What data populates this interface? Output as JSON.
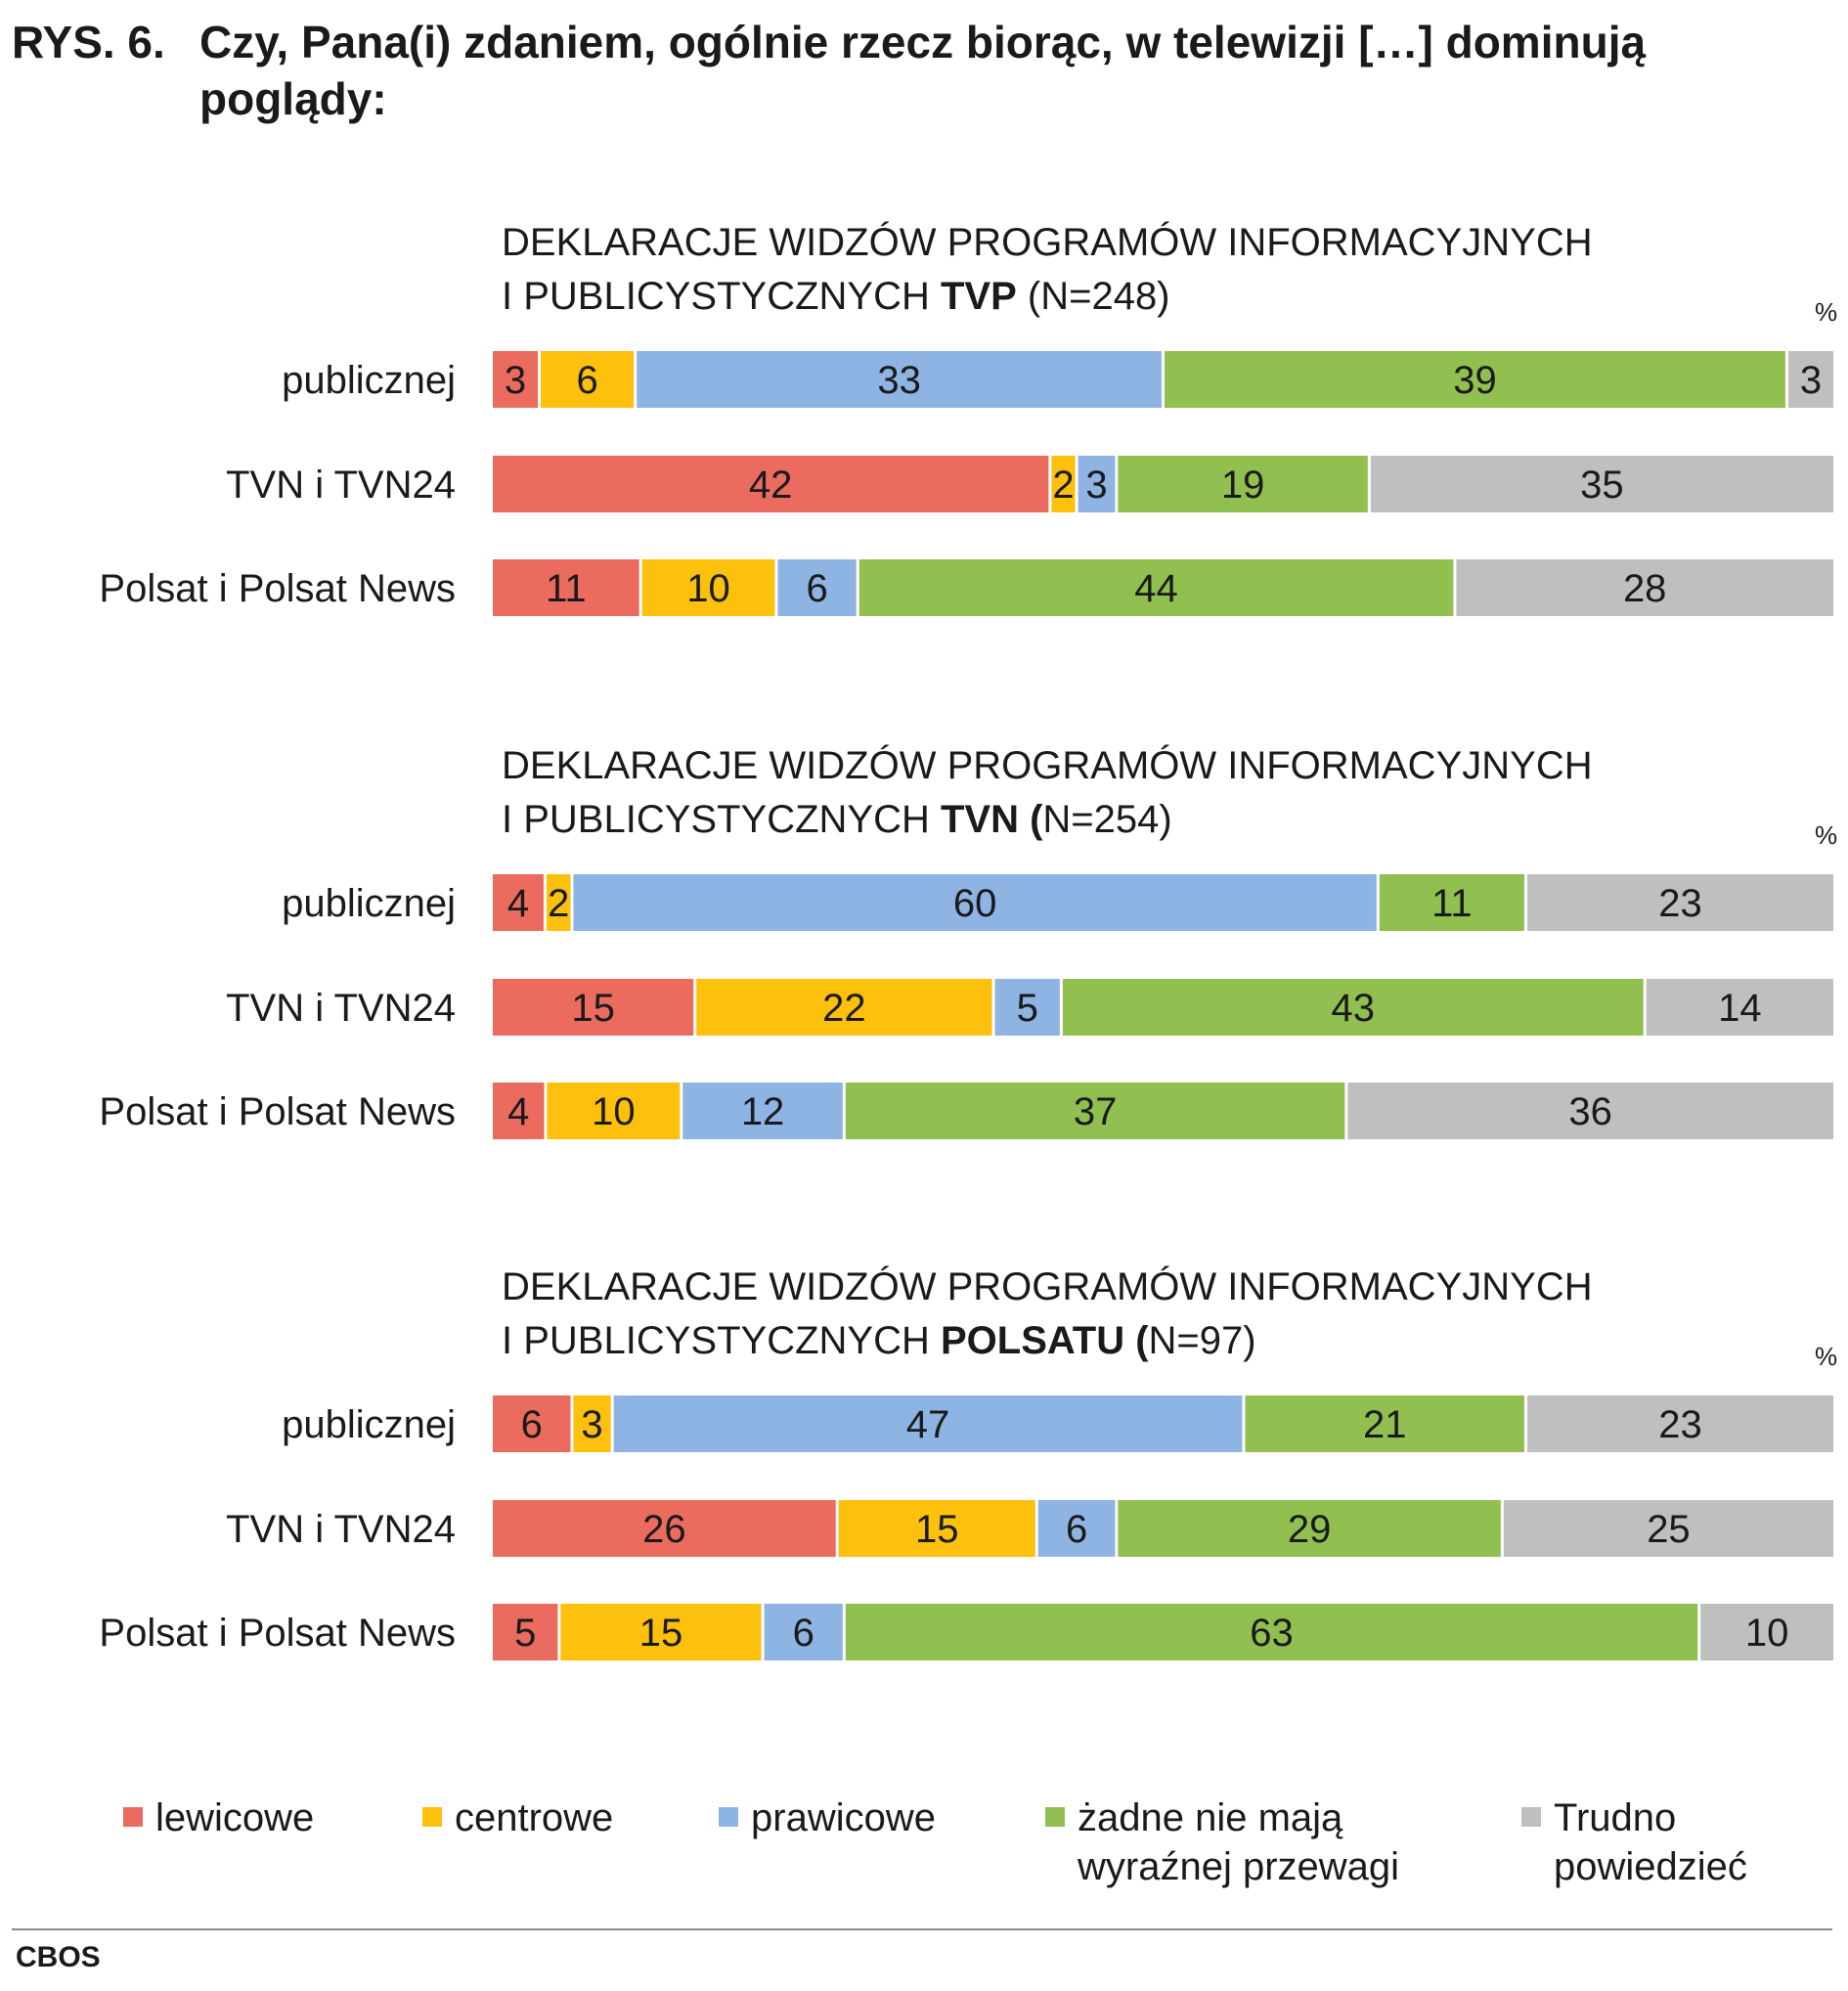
{
  "figure": {
    "label": "RYS. 6.",
    "title": "Czy, Pana(i) zdaniem, ogólnie rzecz biorąc, w telewizji […] dominują poglądy:"
  },
  "source": "CBOS",
  "chart_data": [
    {
      "type": "bar",
      "orientation": "horizontal",
      "stacked": true,
      "title_line1": "DEKLARACJE WIDZÓW PROGRAMÓW INFORMACYJNYCH",
      "title_line2_prefix": "I PUBLICYSTYCZNYCH ",
      "title_line2_bold": "TVP",
      "title_line2_suffix": " (N=248)",
      "unit": "%",
      "categories": [
        "publicznej",
        "TVN i TVN24",
        "Polsat i Polsat News"
      ],
      "series": [
        {
          "name": "lewicowe",
          "color": "#eb6b5e",
          "values": [
            3,
            42,
            11
          ]
        },
        {
          "name": "centrowe",
          "color": "#fdc00d",
          "values": [
            6,
            2,
            10
          ]
        },
        {
          "name": "prawicowe",
          "color": "#8eb4e3",
          "values": [
            33,
            3,
            6
          ]
        },
        {
          "name": "żadne nie mają wyraźnej przewagi",
          "color": "#92c050",
          "values": [
            39,
            19,
            44
          ]
        },
        {
          "name": "Trudno powiedzieć",
          "color": "#bfbfbf",
          "values": [
            3,
            35,
            28
          ]
        }
      ]
    },
    {
      "type": "bar",
      "orientation": "horizontal",
      "stacked": true,
      "title_line1": "DEKLARACJE WIDZÓW PROGRAMÓW INFORMACYJNYCH",
      "title_line2_prefix": "I PUBLICYSTYCZNYCH ",
      "title_line2_bold": "TVN (",
      "title_line2_suffix": "N=254)",
      "unit": "%",
      "categories": [
        "publicznej",
        "TVN i TVN24",
        "Polsat i Polsat News"
      ],
      "series": [
        {
          "name": "lewicowe",
          "color": "#eb6b5e",
          "values": [
            4,
            15,
            4
          ]
        },
        {
          "name": "centrowe",
          "color": "#fdc00d",
          "values": [
            2,
            22,
            10
          ]
        },
        {
          "name": "prawicowe",
          "color": "#8eb4e3",
          "values": [
            60,
            5,
            12
          ]
        },
        {
          "name": "żadne nie mają wyraźnej przewagi",
          "color": "#92c050",
          "values": [
            11,
            43,
            37
          ]
        },
        {
          "name": "Trudno powiedzieć",
          "color": "#bfbfbf",
          "values": [
            23,
            14,
            36
          ]
        }
      ]
    },
    {
      "type": "bar",
      "orientation": "horizontal",
      "stacked": true,
      "title_line1": "DEKLARACJE WIDZÓW PROGRAMÓW INFORMACYJNYCH",
      "title_line2_prefix": "I PUBLICYSTYCZNYCH ",
      "title_line2_bold": "POLSATU (",
      "title_line2_suffix": "N=97)",
      "unit": "%",
      "categories": [
        "publicznej",
        "TVN i TVN24",
        "Polsat i Polsat News"
      ],
      "series": [
        {
          "name": "lewicowe",
          "color": "#eb6b5e",
          "values": [
            6,
            26,
            5
          ]
        },
        {
          "name": "centrowe",
          "color": "#fdc00d",
          "values": [
            3,
            15,
            15
          ]
        },
        {
          "name": "prawicowe",
          "color": "#8eb4e3",
          "values": [
            47,
            6,
            6
          ]
        },
        {
          "name": "żadne nie mają wyraźnej przewagi",
          "color": "#92c050",
          "values": [
            21,
            29,
            63
          ]
        },
        {
          "name": "Trudno powiedzieć",
          "color": "#bfbfbf",
          "values": [
            23,
            25,
            10
          ]
        }
      ]
    }
  ],
  "legend": {
    "placement": "bottom",
    "items": [
      {
        "lines": [
          "lewicowe"
        ],
        "color": "#eb6b5e"
      },
      {
        "lines": [
          "centrowe"
        ],
        "color": "#fdc00d"
      },
      {
        "lines": [
          "prawicowe"
        ],
        "color": "#8eb4e3"
      },
      {
        "lines": [
          "żadne nie mają",
          "wyraźnej przewagi"
        ],
        "color": "#92c050"
      },
      {
        "lines": [
          "Trudno",
          "powiedzieć"
        ],
        "color": "#bfbfbf"
      }
    ]
  }
}
